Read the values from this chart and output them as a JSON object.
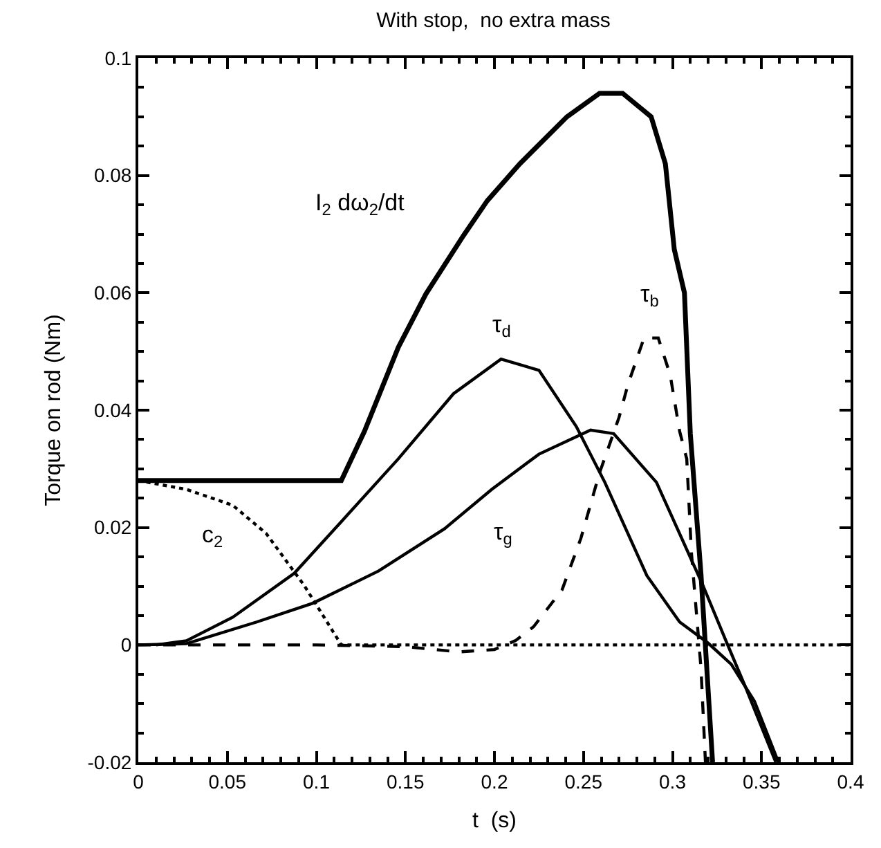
{
  "chart_data": {
    "type": "line",
    "title": "With stop,  no extra mass",
    "xlabel": "t  (s)",
    "ylabel": "Torque on rod (Nm)",
    "xlim": [
      0,
      0.4
    ],
    "xticks": [
      0,
      0.05,
      0.1,
      0.15,
      0.2,
      0.25,
      0.3,
      0.35,
      0.4
    ],
    "ylim": [
      -0.02,
      0.1
    ],
    "yticks": [
      -0.02,
      0,
      0.02,
      0.04,
      0.06,
      0.08,
      0.1
    ],
    "grid": false,
    "legend": false,
    "marker": "none",
    "series": [
      {
        "name": "I$_{2}$ dω$_{2}$/dt",
        "color": "#000000",
        "line_style": "solid",
        "x": [
          0,
          0.114,
          0.127,
          0.146,
          0.1615,
          0.1827,
          0.196,
          0.2143,
          0.2407,
          0.259,
          0.272,
          0.288,
          0.296,
          0.301,
          0.3067,
          0.31,
          0.316,
          0.3225
        ],
        "values": [
          0.028,
          0.028,
          0.0364,
          0.0507,
          0.0598,
          0.0698,
          0.0757,
          0.082,
          0.09,
          0.094,
          0.094,
          0.09,
          0.082,
          0.0674,
          0.06,
          0.036,
          0.012,
          -0.02
        ]
      },
      {
        "name": "τ$_{d}$",
        "color": "#000000",
        "line_style": "solid",
        "x": [
          0.01,
          0.027,
          0.053,
          0.0876,
          0.114,
          0.146,
          0.177,
          0.2037,
          0.225,
          0.246,
          0.262,
          0.2856,
          0.304,
          0.32,
          0.333,
          0.346,
          0.3595
        ],
        "values": [
          0,
          0.0007,
          0.0047,
          0.0122,
          0.021,
          0.0317,
          0.0428,
          0.0487,
          0.0468,
          0.0372,
          0.0277,
          0.0118,
          0.0039,
          0.0003,
          -0.0033,
          -0.0096,
          -0.02
        ]
      },
      {
        "name": "τ$_{g}$",
        "color": "#000000",
        "line_style": "solid",
        "x": [
          0,
          0.027,
          0.0665,
          0.098,
          0.135,
          0.172,
          0.1985,
          0.225,
          0.254,
          0.267,
          0.291,
          0.317,
          0.33,
          0.341,
          0.358
        ],
        "values": [
          0,
          0.0002,
          0.0039,
          0.0071,
          0.0126,
          0.0198,
          0.0265,
          0.0325,
          0.0366,
          0.036,
          0.0277,
          0.0102,
          0.0007,
          -0.0072,
          -0.02
        ]
      },
      {
        "name": "τ$_{b}$",
        "color": "#000000",
        "line_style": "dashed",
        "x": [
          0,
          0.1,
          0.15,
          0.18,
          0.2,
          0.2117,
          0.222,
          0.238,
          0.2486,
          0.259,
          0.27,
          0.275,
          0.284,
          0.292,
          0.2987,
          0.304,
          0.308,
          0.3106,
          0.316,
          0.3185
        ],
        "values": [
          0,
          0,
          -0.0003,
          -0.0012,
          -0.0008,
          0.0007,
          0.0031,
          0.0094,
          0.0182,
          0.0293,
          0.0388,
          0.0444,
          0.0523,
          0.0523,
          0.046,
          0.0364,
          0.0317,
          0.0158,
          -0.004,
          -0.02
        ]
      },
      {
        "name": "c$_{2}$",
        "color": "#000000",
        "line_style": "dotted",
        "x": [
          0,
          0.027,
          0.053,
          0.0718,
          0.093,
          0.106,
          0.114,
          0.2,
          0.3,
          0.4
        ],
        "values": [
          0.028,
          0.0265,
          0.0238,
          0.019,
          0.0102,
          0.0039,
          0,
          0,
          0,
          0
        ]
      }
    ]
  }
}
